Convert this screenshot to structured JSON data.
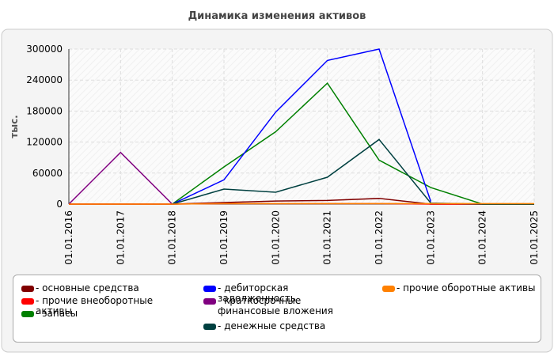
{
  "chart_data": {
    "type": "line",
    "title": "Динамика изменения активов",
    "y_label": "тыс.",
    "categories": [
      "01.01.2016",
      "01.01.2017",
      "01.01.2018",
      "01.01.2019",
      "01.01.2020",
      "01.01.2021",
      "01.01.2022",
      "01.01.2023",
      "01.01.2024",
      "01.01.2025"
    ],
    "ylim": [
      0,
      300000
    ],
    "yticks": [
      0,
      60000,
      120000,
      180000,
      240000,
      300000
    ],
    "grid": true,
    "series": [
      {
        "name": "- основные средства",
        "color": "#800000",
        "values": [
          0,
          0,
          0,
          3000,
          6000,
          7000,
          11000,
          0,
          0,
          0
        ]
      },
      {
        "name": "- прочие внеоборотные активы",
        "color": "#ff0000",
        "values": [
          0,
          0,
          0,
          1000,
          1000,
          1000,
          1000,
          0,
          0,
          0
        ]
      },
      {
        "name": "- запасы",
        "color": "#008000",
        "values": [
          null,
          null,
          0,
          72000,
          140000,
          234000,
          85000,
          32000,
          0,
          0
        ]
      },
      {
        "name": "- дебиторская задолженность",
        "color": "#0000ff",
        "values": [
          null,
          null,
          0,
          47000,
          178000,
          278000,
          300000,
          5000,
          null,
          null
        ]
      },
      {
        "name": "- краткосрочные финансовые вложения",
        "color": "#800080",
        "values": [
          0,
          100000,
          0,
          null,
          null,
          null,
          null,
          null,
          null,
          null
        ]
      },
      {
        "name": "- денежные средства",
        "color": "#004040",
        "values": [
          null,
          null,
          0,
          29000,
          23000,
          52000,
          125000,
          2000,
          0,
          0
        ]
      },
      {
        "name": "- прочие оборотные активы",
        "color": "#ff8000",
        "values": [
          0,
          0,
          0,
          1000,
          1000,
          1000,
          1000,
          1000,
          1000,
          1000
        ]
      }
    ]
  }
}
